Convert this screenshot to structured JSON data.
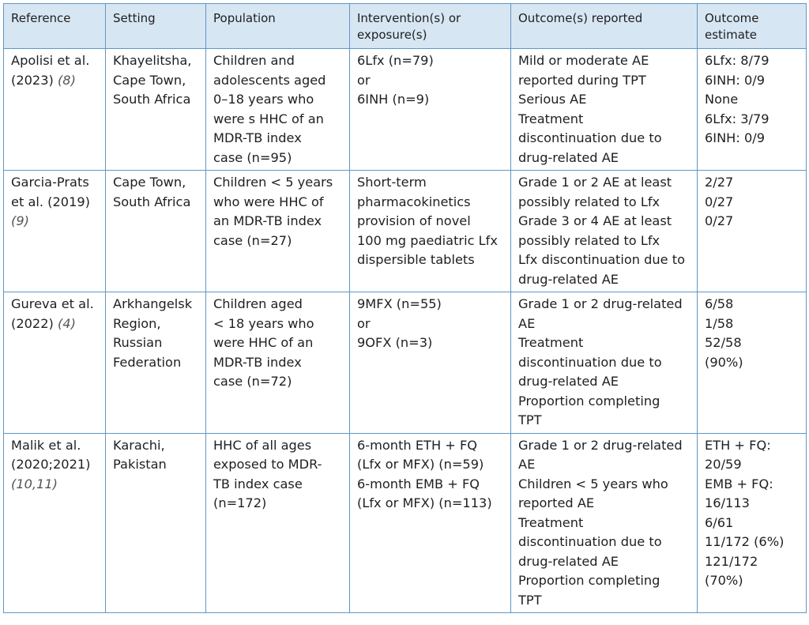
{
  "table": {
    "headers": [
      "Reference",
      "Setting",
      "Population",
      "Intervention(s) or exposure(s)",
      "Outcome(s) reported",
      "Outcome estimate"
    ],
    "header_lines": [
      [
        "Reference"
      ],
      [
        "Setting"
      ],
      [
        "Population"
      ],
      [
        "Intervention(s) or",
        "exposure(s)"
      ],
      [
        "Outcome(s) reported"
      ],
      [
        "Outcome",
        "estimate"
      ]
    ],
    "rows": [
      {
        "reference": {
          "author": "Apolisi et al.",
          "year": "(2023)",
          "cite": "(8)"
        },
        "setting": [
          "Khayelitsha,",
          "Cape Town,",
          "South Africa"
        ],
        "population": [
          "Children and",
          "adolescents aged",
          "0–18 years who",
          "were s HHC of an",
          "MDR-TB index",
          "case (n=95)"
        ],
        "intervention": [
          "6Lfx (n=79)",
          "or",
          "6INH (n=9)"
        ],
        "outcomes": [
          "Mild or moderate AE",
          "reported during TPT",
          "Serious AE",
          "Treatment",
          "discontinuation due to",
          "drug-related AE"
        ],
        "estimates": [
          "6Lfx: 8/79",
          "6INH: 0/9",
          "None",
          "6Lfx: 3/79",
          "6INH: 0/9"
        ]
      },
      {
        "reference": {
          "author": "Garcia-Prats",
          "year": "et al. (2019)",
          "cite": "(9)"
        },
        "setting": [
          "Cape Town,",
          "South Africa"
        ],
        "population": [
          "Children < 5 years",
          "who were HHC of",
          "an MDR-TB index",
          "case (n=27)"
        ],
        "intervention": [
          "Short-term",
          "pharmacokinetics",
          "provision of novel",
          "100 mg paediatric Lfx",
          "dispersible tablets"
        ],
        "outcomes": [
          "Grade 1 or 2 AE at least",
          "possibly related to Lfx",
          "Grade 3 or 4 AE at least",
          "possibly related to Lfx",
          "Lfx discontinuation due to",
          "drug-related AE"
        ],
        "estimates": [
          "2/27",
          "0/27",
          "0/27"
        ]
      },
      {
        "reference": {
          "author": "Gureva et al.",
          "year": "(2022)",
          "cite": "(4)"
        },
        "setting": [
          "Arkhangelsk",
          "Region,",
          "Russian",
          "Federation"
        ],
        "population": [
          "Children aged",
          "< 18 years who",
          "were HHC of an",
          "MDR-TB index",
          "case (n=72)"
        ],
        "intervention": [
          "9MFX (n=55)",
          "or",
          "9OFX (n=3)"
        ],
        "outcomes": [
          "Grade 1 or 2 drug-related",
          "AE",
          "Treatment",
          "discontinuation due to",
          "drug-related AE",
          "Proportion completing",
          "TPT"
        ],
        "estimates": [
          "6/58",
          "1/58",
          "52/58",
          "(90%)"
        ]
      },
      {
        "reference": {
          "author": "Malik et al.",
          "year": "(2020;2021)",
          "cite": "(10,11)"
        },
        "setting": [
          "Karachi,",
          "Pakistan"
        ],
        "population": [
          "HHC of all ages",
          "exposed to MDR-",
          "TB index case",
          "(n=172)"
        ],
        "intervention": [
          "6-month ETH + FQ",
          "(Lfx or MFX) (n=59)",
          "6-month EMB + FQ",
          "(Lfx or MFX) (n=113)"
        ],
        "outcomes": [
          "Grade 1 or 2 drug-related",
          "AE",
          "Children < 5 years who",
          "reported AE",
          "Treatment",
          "discontinuation due to",
          "drug-related AE",
          "Proportion completing",
          "TPT"
        ],
        "estimates": [
          "ETH + FQ:",
          "20/59",
          "EMB + FQ:",
          "16/113",
          "6/61",
          "11/172 (6%)",
          "121/172",
          "(70%)"
        ]
      }
    ]
  }
}
